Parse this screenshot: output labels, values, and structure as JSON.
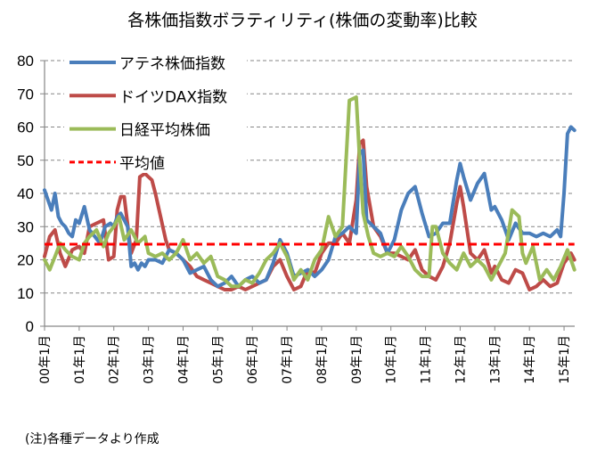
{
  "chart_data": {
    "type": "line",
    "title": "各株価指数ボラティリティ(株価の変動率)比較",
    "xlabel": "",
    "ylabel": "",
    "ylim": [
      0,
      80
    ],
    "xlim": [
      2000.0,
      2015.3
    ],
    "yticks": [
      "0",
      "10",
      "20",
      "30",
      "40",
      "50",
      "60",
      "70",
      "80"
    ],
    "xticks": [
      "00年1月",
      "01年1月",
      "02年1月",
      "03年1月",
      "04年1月",
      "05年1月",
      "06年1月",
      "07年1月",
      "08年1月",
      "09年1月",
      "10年1月",
      "11年1月",
      "12年1月",
      "13年1月",
      "14年1月",
      "15年1月"
    ],
    "grid": true,
    "legend_position": "top-left",
    "note": "(注)各種データより作成",
    "series": [
      {
        "name": "アテネ株価指数",
        "color": "#4A7EBB",
        "dash": false,
        "x": [
          2000.0,
          2000.1,
          2000.2,
          2000.3,
          2000.4,
          2000.5,
          2000.6,
          2000.7,
          2000.8,
          2000.9,
          2001.0,
          2001.15,
          2001.3,
          2001.45,
          2001.6,
          2001.75,
          2001.9,
          2002.0,
          2002.1,
          2002.2,
          2002.3,
          2002.4,
          2002.5,
          2002.6,
          2002.7,
          2002.8,
          2002.9,
          2003.0,
          2003.2,
          2003.4,
          2003.6,
          2003.8,
          2004.0,
          2004.2,
          2004.4,
          2004.6,
          2004.8,
          2005.0,
          2005.2,
          2005.4,
          2005.6,
          2005.8,
          2006.0,
          2006.2,
          2006.4,
          2006.6,
          2006.8,
          2007.0,
          2007.2,
          2007.4,
          2007.6,
          2007.8,
          2008.0,
          2008.2,
          2008.4,
          2008.6,
          2008.8,
          2009.0,
          2009.1,
          2009.2,
          2009.3,
          2009.5,
          2009.7,
          2009.9,
          2010.1,
          2010.3,
          2010.5,
          2010.7,
          2010.9,
          2011.1,
          2011.3,
          2011.5,
          2011.7,
          2011.9,
          2012.0,
          2012.1,
          2012.3,
          2012.5,
          2012.7,
          2012.9,
          2013.0,
          2013.2,
          2013.4,
          2013.6,
          2013.8,
          2014.0,
          2014.2,
          2014.4,
          2014.6,
          2014.8,
          2014.9,
          2015.0,
          2015.1,
          2015.2,
          2015.3
        ],
        "values": [
          41,
          38,
          35,
          40,
          33,
          31,
          30,
          28,
          27,
          32,
          31,
          36,
          29,
          27,
          25,
          30,
          31,
          30,
          33,
          34,
          32,
          30,
          18,
          19,
          17,
          19,
          18,
          20,
          20,
          19,
          23,
          22,
          20,
          16,
          17,
          18,
          14,
          12,
          13,
          15,
          12,
          14,
          15,
          13,
          14,
          19,
          26,
          22,
          15,
          16,
          17,
          15,
          17,
          20,
          27,
          28,
          30,
          28,
          52,
          53,
          32,
          30,
          28,
          22,
          26,
          35,
          40,
          42,
          34,
          27,
          28,
          31,
          31,
          44,
          49,
          45,
          38,
          43,
          46,
          35,
          36,
          32,
          26,
          31,
          28,
          28,
          27,
          28,
          27,
          29,
          27,
          40,
          58,
          60,
          59
        ]
      },
      {
        "name": "ドイツDAX指数",
        "color": "#BE4B48",
        "dash": false,
        "x": [
          2000.0,
          2000.15,
          2000.3,
          2000.45,
          2000.6,
          2000.8,
          2001.0,
          2001.15,
          2001.3,
          2001.5,
          2001.7,
          2001.85,
          2002.0,
          2002.1,
          2002.2,
          2002.3,
          2002.5,
          2002.65,
          2002.75,
          2002.9,
          2003.0,
          2003.1,
          2003.2,
          2003.35,
          2003.5,
          2003.6,
          2003.8,
          2004.0,
          2004.2,
          2004.4,
          2004.6,
          2004.8,
          2005.0,
          2005.2,
          2005.4,
          2005.6,
          2005.8,
          2006.0,
          2006.2,
          2006.4,
          2006.6,
          2006.8,
          2007.0,
          2007.2,
          2007.4,
          2007.6,
          2007.8,
          2008.0,
          2008.2,
          2008.4,
          2008.6,
          2008.8,
          2009.0,
          2009.1,
          2009.2,
          2009.3,
          2009.5,
          2009.7,
          2009.9,
          2010.1,
          2010.3,
          2010.5,
          2010.7,
          2010.9,
          2011.1,
          2011.3,
          2011.5,
          2011.7,
          2011.9,
          2012.0,
          2012.1,
          2012.3,
          2012.5,
          2012.7,
          2012.9,
          2013.0,
          2013.2,
          2013.4,
          2013.6,
          2013.8,
          2014.0,
          2014.2,
          2014.4,
          2014.6,
          2014.8,
          2015.0,
          2015.2,
          2015.3
        ],
        "values": [
          21,
          27,
          29,
          22,
          18,
          23,
          24,
          22,
          30,
          31,
          32,
          20,
          21,
          35,
          39,
          39,
          22,
          26,
          45,
          46,
          45,
          44,
          40,
          33,
          26,
          23,
          22,
          20,
          18,
          15,
          14,
          13,
          12,
          11,
          11,
          12,
          11,
          12,
          13,
          14,
          18,
          20,
          15,
          11,
          12,
          17,
          16,
          22,
          25,
          25,
          28,
          25,
          38,
          55,
          56,
          42,
          30,
          27,
          22,
          22,
          21,
          20,
          23,
          17,
          15,
          14,
          18,
          25,
          37,
          42,
          36,
          22,
          20,
          23,
          16,
          18,
          14,
          13,
          17,
          16,
          11,
          12,
          14,
          12,
          13,
          19,
          22,
          20
        ]
      },
      {
        "name": "日経平均株価",
        "color": "#9BBB59",
        "dash": false,
        "x": [
          2000.0,
          2000.15,
          2000.3,
          2000.45,
          2000.6,
          2000.8,
          2001.0,
          2001.15,
          2001.3,
          2001.5,
          2001.7,
          2001.85,
          2002.0,
          2002.15,
          2002.3,
          2002.5,
          2002.7,
          2002.9,
          2003.0,
          2003.2,
          2003.4,
          2003.6,
          2003.8,
          2004.0,
          2004.2,
          2004.4,
          2004.6,
          2004.8,
          2005.0,
          2005.2,
          2005.4,
          2005.6,
          2005.8,
          2006.0,
          2006.2,
          2006.4,
          2006.6,
          2006.8,
          2007.0,
          2007.2,
          2007.4,
          2007.6,
          2007.8,
          2008.0,
          2008.2,
          2008.4,
          2008.6,
          2008.8,
          2009.0,
          2009.1,
          2009.2,
          2009.35,
          2009.5,
          2009.7,
          2009.9,
          2010.1,
          2010.3,
          2010.5,
          2010.7,
          2010.9,
          2011.1,
          2011.2,
          2011.3,
          2011.5,
          2011.7,
          2011.9,
          2012.1,
          2012.3,
          2012.5,
          2012.7,
          2012.9,
          2013.1,
          2013.3,
          2013.5,
          2013.7,
          2013.8,
          2013.9,
          2014.1,
          2014.3,
          2014.5,
          2014.7,
          2014.9,
          2015.1,
          2015.3
        ],
        "values": [
          20,
          17,
          21,
          25,
          23,
          21,
          20,
          25,
          27,
          29,
          24,
          28,
          30,
          33,
          26,
          29,
          25,
          27,
          22,
          21,
          22,
          20,
          22,
          26,
          20,
          22,
          19,
          21,
          15,
          14,
          12,
          12,
          14,
          13,
          16,
          20,
          22,
          25,
          21,
          14,
          17,
          14,
          20,
          23,
          33,
          27,
          30,
          68,
          69,
          50,
          34,
          27,
          22,
          21,
          22,
          21,
          24,
          21,
          17,
          15,
          15,
          30,
          30,
          22,
          19,
          17,
          22,
          18,
          20,
          18,
          14,
          18,
          22,
          35,
          33,
          22,
          19,
          24,
          14,
          17,
          14,
          18,
          23,
          17
        ]
      },
      {
        "name": "平均値",
        "color": "#FF0000",
        "dash": true,
        "x": [
          2000.0,
          2015.3
        ],
        "values": [
          24.7,
          24.7
        ]
      }
    ]
  }
}
